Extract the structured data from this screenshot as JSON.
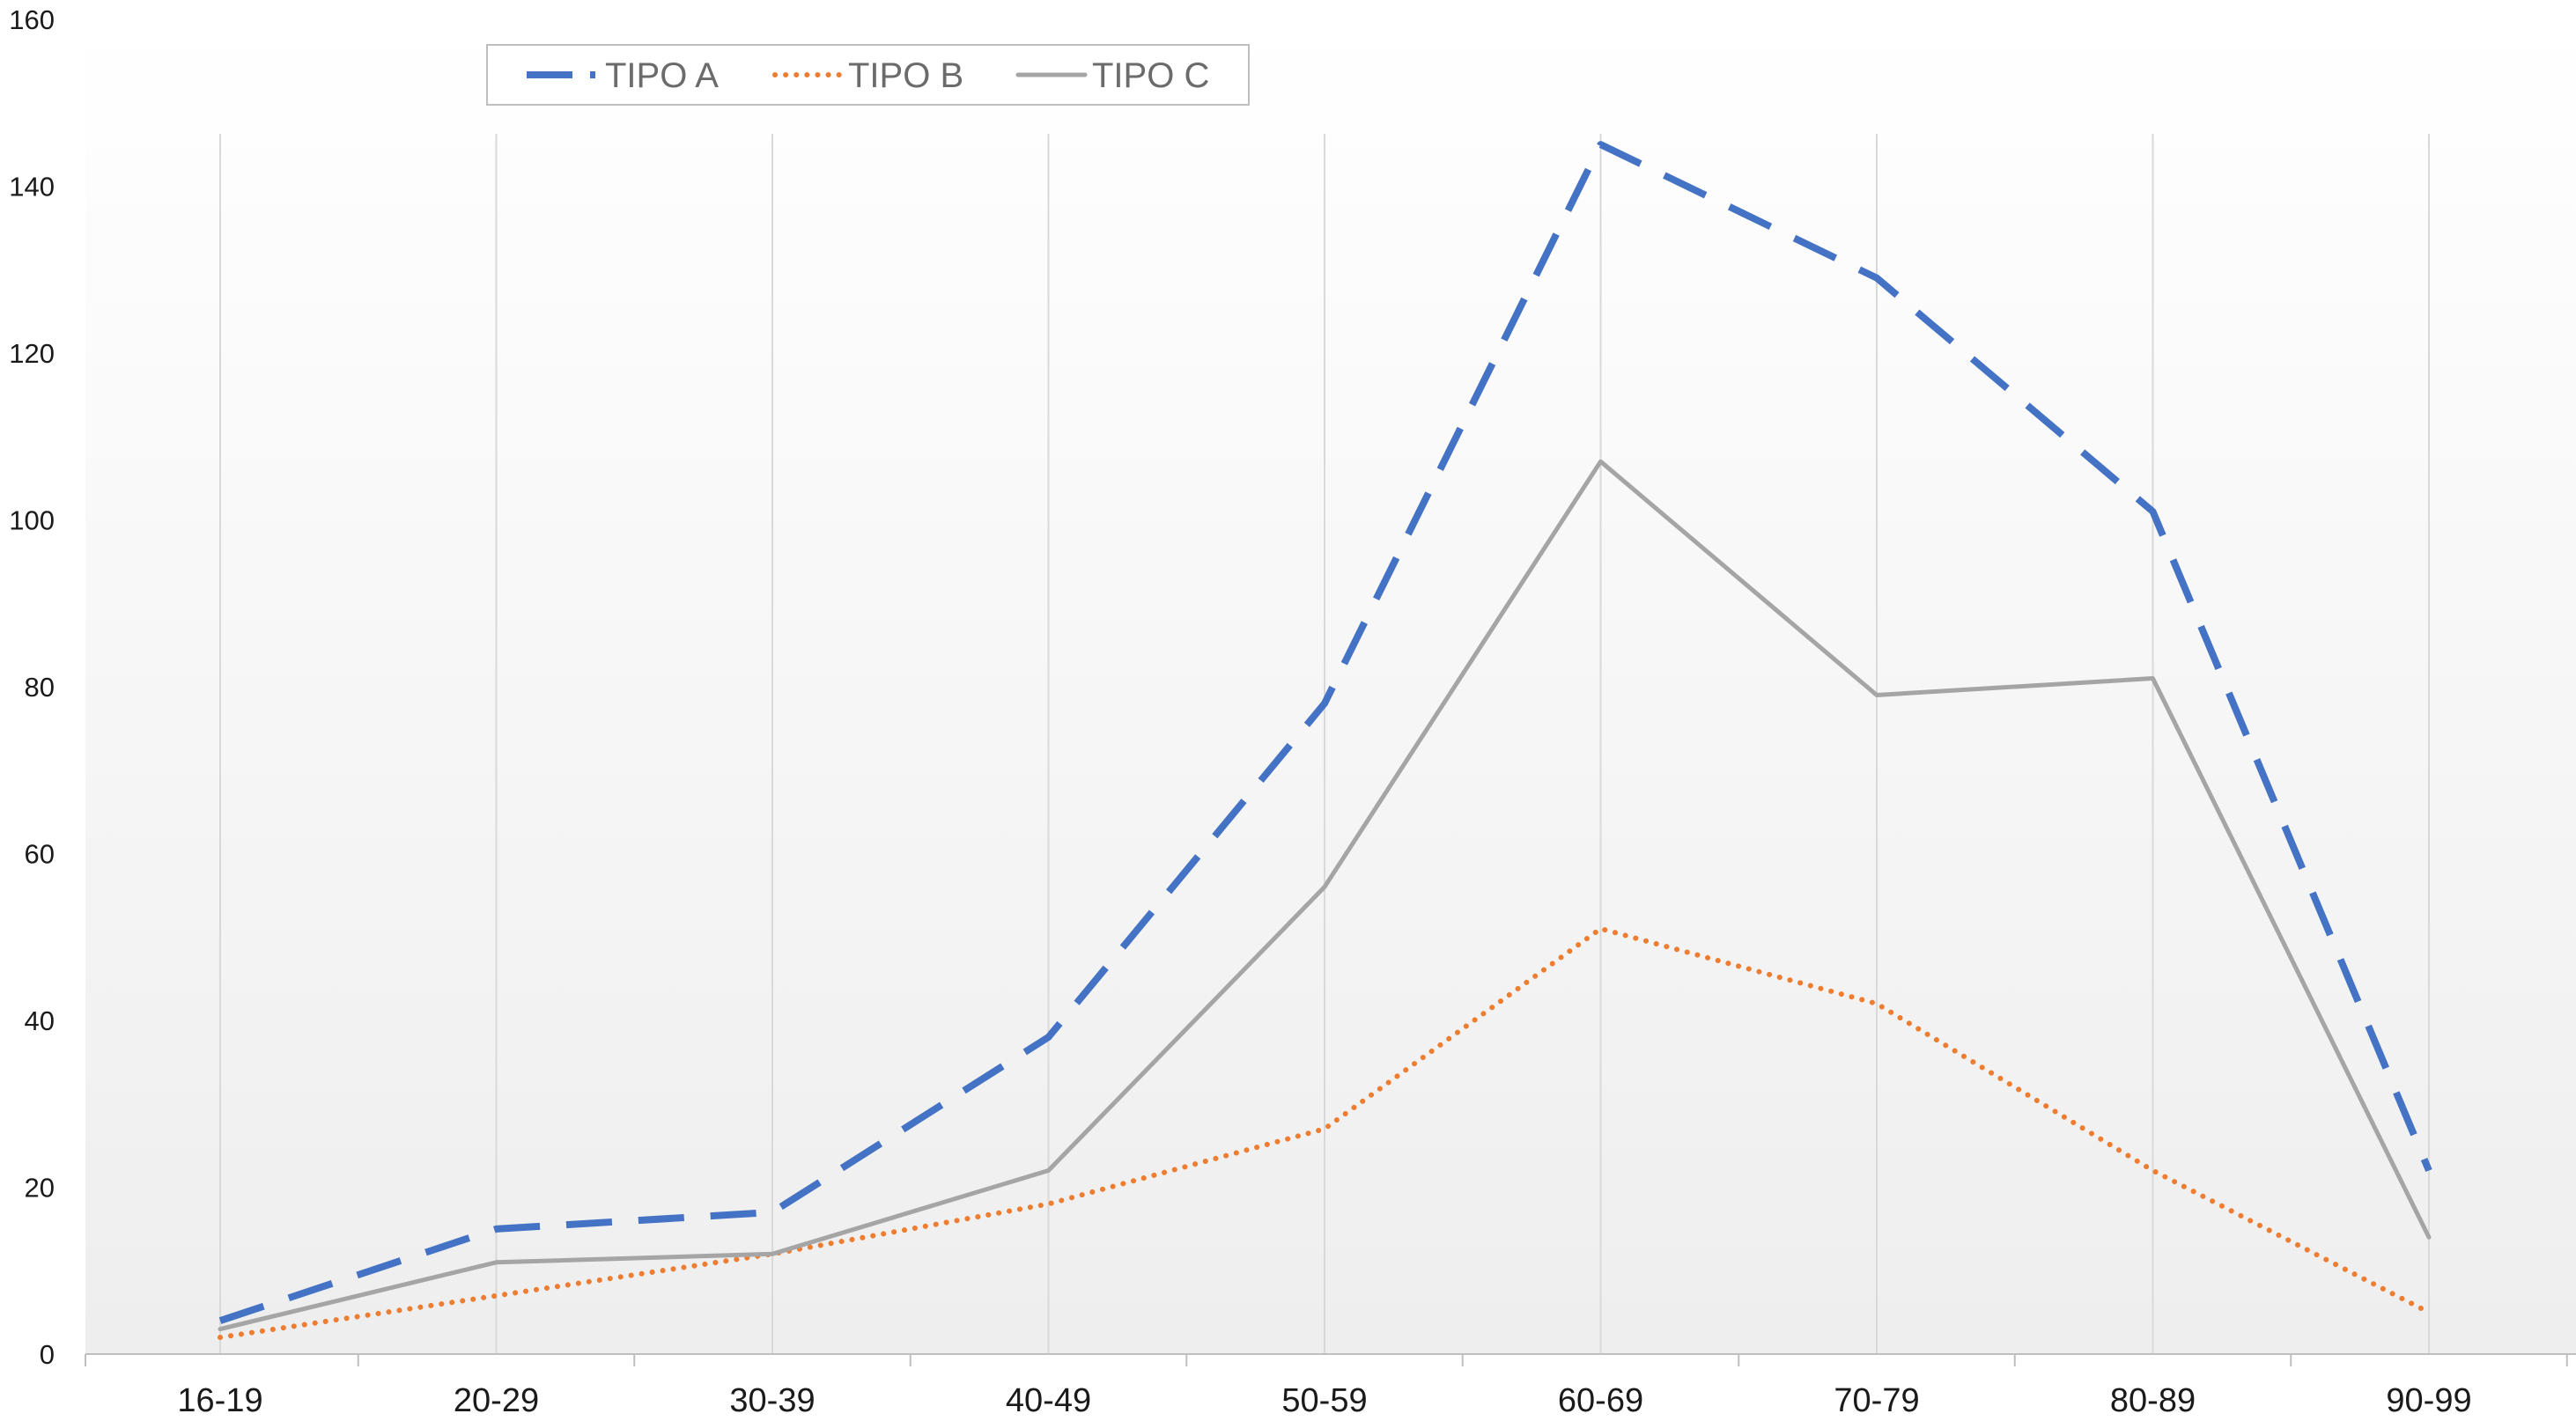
{
  "chart_data": {
    "type": "line",
    "title": "",
    "xlabel": "",
    "ylabel": "",
    "categories": [
      "16-19",
      "20-29",
      "30-39",
      "40-49",
      "50-59",
      "60-69",
      "70-79",
      "80-89",
      "90-99"
    ],
    "ylim": [
      0,
      160
    ],
    "yticks": [
      0,
      20,
      40,
      60,
      80,
      100,
      120,
      140,
      160
    ],
    "grid": "vertical lines at each category",
    "legend_position": "top-left",
    "series": [
      {
        "name": "TIPO A",
        "color": "#4472c4",
        "style": "dashed",
        "values": [
          4,
          15,
          17,
          38,
          78,
          145,
          129,
          101,
          22
        ]
      },
      {
        "name": "TIPO B",
        "color": "#ed7d31",
        "style": "dotted",
        "values": [
          2,
          7,
          12,
          18,
          27,
          51,
          42,
          22,
          5
        ]
      },
      {
        "name": "TIPO C",
        "color": "#a5a5a5",
        "style": "solid",
        "values": [
          3,
          11,
          12,
          22,
          56,
          107,
          79,
          81,
          14
        ]
      }
    ]
  }
}
